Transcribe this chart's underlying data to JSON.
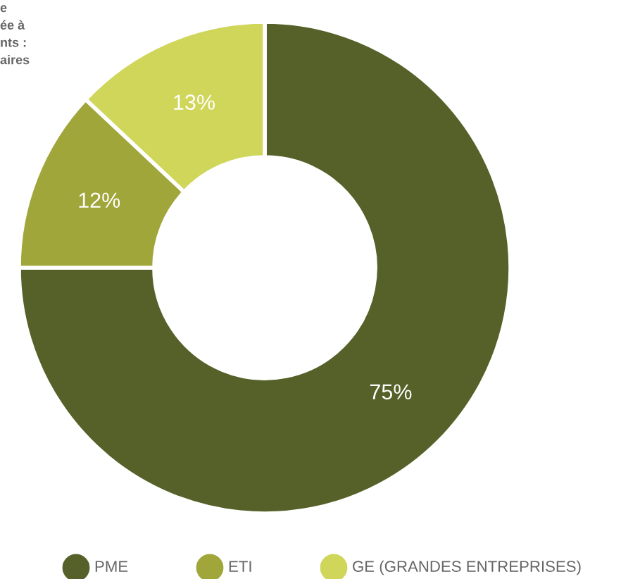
{
  "chart_data": {
    "type": "donut",
    "categories": [
      "PME",
      "ETI",
      "GE (GRANDES ENTREPRISES)"
    ],
    "values": [
      75,
      12,
      13
    ],
    "colors": [
      "#566129",
      "#a0a63a",
      "#cfd65a"
    ],
    "value_labels": [
      "75%",
      "12%",
      "13%"
    ],
    "legend": "bottom",
    "annotations": [
      "e\née à\nnts :\naires"
    ]
  }
}
